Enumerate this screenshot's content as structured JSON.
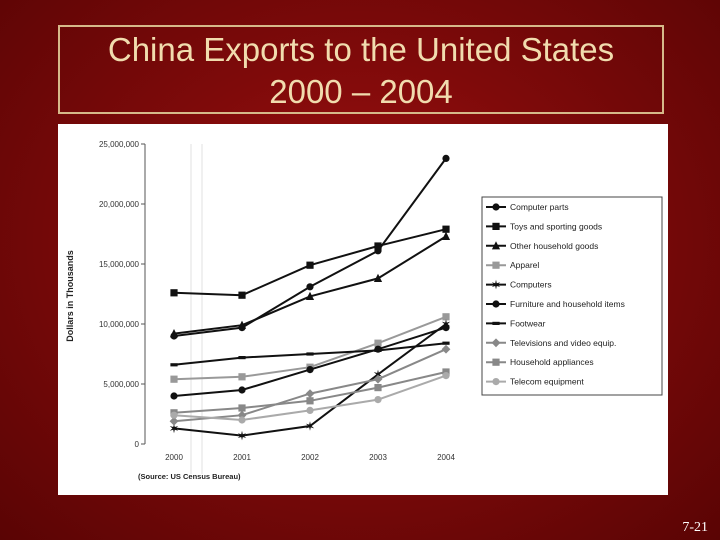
{
  "slide": {
    "title_line1": "China Exports to the United States",
    "title_line2": "2000 – 2004",
    "slide_number": "7-21",
    "background_color": "#7e0a0a",
    "title_color": "#f1dcae"
  },
  "chart_data": {
    "type": "line",
    "title": "",
    "xlabel": "",
    "ylabel": "Dollars in Thousands",
    "source": "(Source: US Census Bureau)",
    "categories": [
      "2000",
      "2001",
      "2002",
      "2003",
      "2004"
    ],
    "ylim": [
      0,
      25000000
    ],
    "yticks": [
      "0",
      "5,000,000",
      "10,000,000",
      "15,000,000",
      "20,000,000",
      "25,000,000"
    ],
    "legend_position": "right",
    "grid": false,
    "series": [
      {
        "name": "Computer parts",
        "values": [
          9000000,
          9700000,
          13100000,
          16100000,
          23800000
        ],
        "color": "#111111",
        "marker": "circle"
      },
      {
        "name": "Toys and sporting goods",
        "values": [
          12600000,
          12400000,
          14900000,
          16500000,
          17900000
        ],
        "color": "#111111",
        "marker": "square"
      },
      {
        "name": "Other household goods",
        "values": [
          9200000,
          9900000,
          12300000,
          13800000,
          17300000
        ],
        "color": "#111111",
        "marker": "triangle"
      },
      {
        "name": "Apparel",
        "values": [
          5400000,
          5600000,
          6400000,
          8400000,
          10600000
        ],
        "color": "#999999",
        "marker": "square"
      },
      {
        "name": "Computers",
        "values": [
          1300000,
          700000,
          1500000,
          5800000,
          10000000
        ],
        "color": "#111111",
        "marker": "star"
      },
      {
        "name": "Furniture and household items",
        "values": [
          4000000,
          4500000,
          6200000,
          7900000,
          9700000
        ],
        "color": "#111111",
        "marker": "circle"
      },
      {
        "name": "Footwear",
        "values": [
          6600000,
          7200000,
          7500000,
          7800000,
          8400000
        ],
        "color": "#111111",
        "marker": "dash"
      },
      {
        "name": "Televisions and video equip.",
        "values": [
          1900000,
          2400000,
          4200000,
          5400000,
          7900000
        ],
        "color": "#888888",
        "marker": "diamond"
      },
      {
        "name": "Household appliances",
        "values": [
          2600000,
          3000000,
          3600000,
          4700000,
          6000000
        ],
        "color": "#888888",
        "marker": "square"
      },
      {
        "name": "Telecom equipment",
        "values": [
          2400000,
          2000000,
          2800000,
          3700000,
          5700000
        ],
        "color": "#aaaaaa",
        "marker": "circle"
      }
    ]
  }
}
